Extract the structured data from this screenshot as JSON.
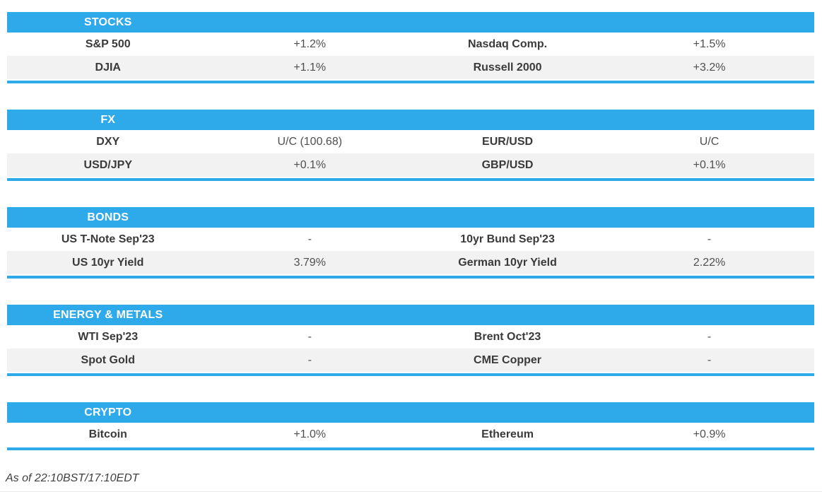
{
  "accent_color": "#2ea9ea",
  "row_alt_color": "#f2f2f2",
  "sections": [
    {
      "title": "STOCKS",
      "rows": [
        {
          "name1": "S&P 500",
          "value1": "+1.2%",
          "name2": "Nasdaq Comp.",
          "value2": "+1.5%"
        },
        {
          "name1": "DJIA",
          "value1": "+1.1%",
          "name2": "Russell 2000",
          "value2": "+3.2%"
        }
      ]
    },
    {
      "title": "FX",
      "rows": [
        {
          "name1": "DXY",
          "value1": "U/C (100.68)",
          "name2": "EUR/USD",
          "value2": "U/C"
        },
        {
          "name1": "USD/JPY",
          "value1": "+0.1%",
          "name2": "GBP/USD",
          "value2": "+0.1%"
        }
      ]
    },
    {
      "title": "BONDS",
      "rows": [
        {
          "name1": "US T-Note Sep'23",
          "value1": "-",
          "name2": "10yr Bund Sep'23",
          "value2": "-"
        },
        {
          "name1": "US 10yr Yield",
          "value1": "3.79%",
          "name2": "German 10yr Yield",
          "value2": "2.22%"
        }
      ]
    },
    {
      "title": "ENERGY & METALS",
      "rows": [
        {
          "name1": "WTI Sep'23",
          "value1": "-",
          "name2": "Brent Oct'23",
          "value2": "-"
        },
        {
          "name1": "Spot Gold",
          "value1": "-",
          "name2": "CME Copper",
          "value2": "-"
        }
      ]
    },
    {
      "title": "CRYPTO",
      "rows": [
        {
          "name1": "Bitcoin",
          "value1": "+1.0%",
          "name2": "Ethereum",
          "value2": "+0.9%"
        }
      ]
    }
  ],
  "footer": {
    "as_of": "As of 22:10BST/17:10EDT"
  }
}
